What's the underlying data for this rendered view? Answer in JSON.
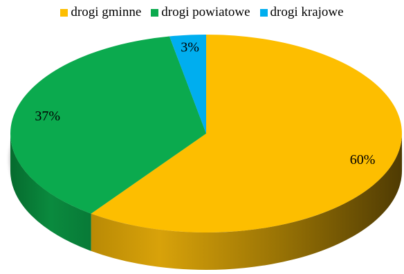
{
  "chart_data": {
    "type": "pie",
    "style": "3d",
    "categories": [
      "drogi gminne",
      "drogi powiatowe",
      "drogi krajowe"
    ],
    "values": [
      60,
      37,
      3
    ],
    "data_labels": [
      "60%",
      "37%",
      "3%"
    ],
    "colors": [
      "#FDBE00",
      "#0BAA4E",
      "#00AEEF"
    ],
    "legend_position": "top",
    "title": ""
  }
}
